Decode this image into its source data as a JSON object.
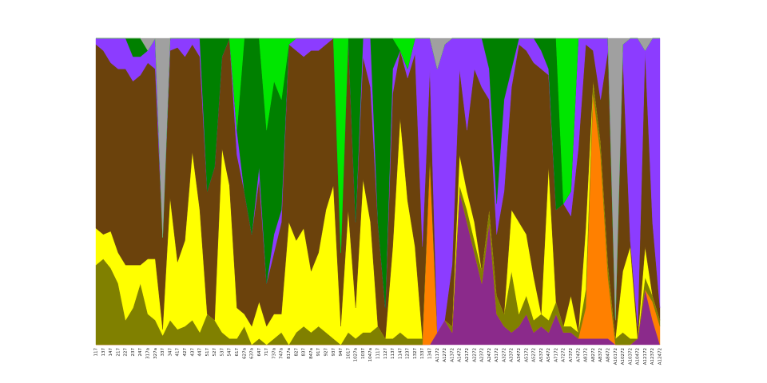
{
  "chart_data": {
    "type": "stacked_area",
    "categories": [
      "117",
      "137",
      "147",
      "217",
      "227",
      "237",
      "247",
      "317a",
      "327a",
      "337",
      "347",
      "417",
      "427",
      "437",
      "447",
      "517",
      "527",
      "537",
      "547",
      "617",
      "627a",
      "637a",
      "647",
      "717",
      "737a",
      "747a",
      "817a",
      "827",
      "837",
      "847a",
      "917",
      "927",
      "937",
      "947",
      "1017",
      "1027a",
      "1037",
      "1047a",
      "1117",
      "1127",
      "1137",
      "1147",
      "1237",
      "1327",
      "1337",
      "1347",
      "A1172",
      "A1272",
      "A1372",
      "A1472",
      "A2172",
      "A2272",
      "A2372",
      "A2472",
      "A3172",
      "A3272",
      "A3372",
      "A3472",
      "A5172",
      "A5272",
      "A5372",
      "A5472",
      "A7172",
      "A7272",
      "A7372",
      "A7472",
      "A8172",
      "A8272",
      "A8372",
      "A8472",
      "A10172",
      "A10272",
      "A10372",
      "A10472",
      "A12172",
      "A12372",
      "A12472"
    ],
    "ylim": [
      0,
      100
    ],
    "series": [
      {
        "color": "#8b2a8b",
        "values": [
          0,
          0,
          0,
          0,
          0,
          0,
          0,
          0,
          0,
          0,
          0,
          0,
          0,
          0,
          0,
          0,
          0,
          0,
          0,
          0,
          0,
          0,
          0,
          0,
          0,
          0,
          0,
          0,
          0,
          0,
          0,
          0,
          0,
          0,
          0,
          0,
          0,
          0,
          0,
          0,
          0,
          0,
          0,
          0,
          0,
          0,
          4,
          8,
          4,
          50,
          40,
          30,
          20,
          40,
          10,
          6,
          4,
          6,
          10,
          4,
          6,
          4,
          10,
          4,
          4,
          2,
          2,
          2,
          2,
          2,
          0,
          0,
          0,
          2,
          18,
          8,
          0
        ]
      },
      {
        "color": "#ff8000",
        "values": [
          0,
          0,
          0,
          0,
          0,
          0,
          0,
          0,
          0,
          0,
          0,
          0,
          0,
          0,
          0,
          0,
          0,
          0,
          0,
          0,
          0,
          0,
          0,
          0,
          0,
          0,
          0,
          0,
          0,
          0,
          0,
          0,
          0,
          0,
          0,
          0,
          0,
          0,
          0,
          0,
          0,
          0,
          0,
          0,
          0,
          60,
          0,
          0,
          0,
          0,
          0,
          0,
          0,
          0,
          0,
          0,
          0,
          0,
          0,
          0,
          0,
          0,
          0,
          0,
          0,
          0,
          10,
          80,
          60,
          20,
          0,
          0,
          0,
          0,
          0,
          6,
          6
        ]
      },
      {
        "color": "#808000",
        "values": [
          26,
          28,
          25,
          20,
          8,
          12,
          20,
          10,
          8,
          3,
          8,
          5,
          6,
          8,
          4,
          10,
          8,
          4,
          2,
          2,
          6,
          0,
          2,
          0,
          2,
          4,
          0,
          4,
          6,
          4,
          6,
          4,
          2,
          0,
          4,
          2,
          4,
          4,
          6,
          2,
          2,
          4,
          2,
          2,
          2,
          0,
          0,
          0,
          2,
          2,
          4,
          4,
          4,
          4,
          6,
          4,
          20,
          4,
          6,
          4,
          4,
          4,
          4,
          2,
          2,
          2,
          6,
          4,
          4,
          4,
          2,
          4,
          2,
          0,
          4,
          2,
          2
        ]
      },
      {
        "color": "#ffff00",
        "values": [
          12,
          8,
          12,
          10,
          18,
          14,
          6,
          18,
          20,
          2,
          40,
          22,
          28,
          55,
          40,
          0,
          0,
          60,
          50,
          10,
          4,
          6,
          12,
          6,
          8,
          6,
          40,
          30,
          32,
          20,
          24,
          40,
          50,
          6,
          40,
          10,
          50,
          36,
          0,
          0,
          30,
          70,
          45,
          30,
          0,
          0,
          0,
          0,
          0,
          10,
          6,
          6,
          0,
          0,
          0,
          0,
          20,
          30,
          20,
          14,
          0,
          50,
          0,
          0,
          10,
          0,
          20,
          0,
          0,
          0,
          0,
          20,
          30,
          0,
          10,
          0,
          0
        ]
      },
      {
        "color": "#6b420c",
        "values": [
          60,
          60,
          55,
          60,
          64,
          60,
          62,
          64,
          62,
          30,
          48,
          70,
          60,
          35,
          50,
          40,
          50,
          30,
          48,
          50,
          40,
          30,
          40,
          14,
          20,
          30,
          58,
          62,
          56,
          72,
          66,
          54,
          48,
          24,
          56,
          28,
          40,
          44,
          34,
          10,
          50,
          22,
          40,
          63,
          30,
          30,
          0,
          0,
          20,
          28,
          20,
          50,
          60,
          36,
          20,
          40,
          40,
          58,
          60,
          70,
          80,
          30,
          30,
          40,
          26,
          60,
          60,
          10,
          14,
          70,
          6,
          70,
          2,
          4,
          64,
          24,
          4
        ]
      },
      {
        "color": "#8c3cff",
        "values": [
          2,
          4,
          8,
          10,
          10,
          8,
          6,
          4,
          10,
          0,
          4,
          3,
          6,
          2,
          6,
          0,
          0,
          0,
          0,
          8,
          0,
          0,
          4,
          0,
          6,
          4,
          0,
          4,
          6,
          4,
          4,
          2,
          0,
          0,
          0,
          0,
          6,
          16,
          0,
          0,
          8,
          0,
          3,
          5,
          68,
          10,
          86,
          90,
          74,
          10,
          30,
          10,
          16,
          10,
          10,
          30,
          6,
          2,
          4,
          8,
          6,
          2,
          0,
          0,
          8,
          36,
          2,
          4,
          20,
          4,
          0,
          4,
          66,
          94,
          0,
          60,
          88
        ]
      },
      {
        "color": "#008000",
        "values": [
          0,
          0,
          0,
          0,
          0,
          6,
          6,
          0,
          0,
          0,
          0,
          0,
          0,
          0,
          0,
          50,
          42,
          6,
          0,
          0,
          50,
          64,
          42,
          50,
          50,
          36,
          0,
          0,
          0,
          0,
          0,
          0,
          0,
          0,
          0,
          60,
          0,
          0,
          60,
          88,
          10,
          0,
          0,
          0,
          0,
          0,
          0,
          0,
          0,
          0,
          0,
          0,
          0,
          10,
          54,
          20,
          10,
          0,
          0,
          0,
          4,
          10,
          56,
          0,
          0,
          0,
          0,
          0,
          0,
          0,
          0,
          0,
          0,
          0,
          0,
          0,
          0
        ]
      },
      {
        "color": "#00e600",
        "values": [
          0,
          0,
          0,
          0,
          0,
          0,
          0,
          0,
          0,
          0,
          0,
          0,
          0,
          0,
          0,
          0,
          0,
          0,
          0,
          30,
          0,
          0,
          0,
          30,
          14,
          20,
          2,
          0,
          0,
          0,
          0,
          0,
          0,
          70,
          0,
          0,
          0,
          0,
          0,
          0,
          0,
          4,
          10,
          0,
          0,
          0,
          0,
          0,
          0,
          0,
          0,
          0,
          0,
          0,
          0,
          0,
          0,
          0,
          0,
          0,
          0,
          0,
          0,
          54,
          50,
          0,
          0,
          0,
          0,
          0,
          0,
          0,
          0,
          0,
          0,
          0,
          0
        ]
      },
      {
        "color": "#a0a0a0",
        "values": [
          0,
          0,
          0,
          0,
          0,
          0,
          0,
          4,
          0,
          65,
          0,
          0,
          0,
          0,
          0,
          0,
          0,
          0,
          0,
          0,
          0,
          0,
          0,
          0,
          0,
          0,
          0,
          0,
          0,
          0,
          0,
          0,
          0,
          0,
          0,
          0,
          0,
          0,
          0,
          0,
          0,
          0,
          0,
          0,
          0,
          0,
          10,
          2,
          0,
          0,
          0,
          0,
          0,
          0,
          0,
          0,
          0,
          0,
          0,
          0,
          0,
          0,
          0,
          0,
          0,
          0,
          0,
          0,
          0,
          0,
          92,
          2,
          0,
          0,
          4,
          0,
          0
        ]
      }
    ]
  }
}
